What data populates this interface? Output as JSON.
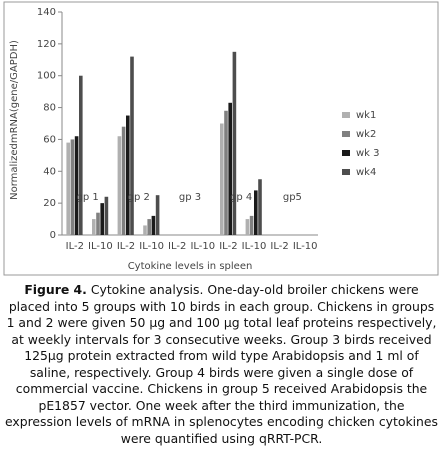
{
  "chart_data": {
    "type": "bar",
    "y_label": "NormalizedmRNA(gene/GAPDH)",
    "x_label": "Cytokine levels in spleen",
    "categories": [
      "IL-2",
      "IL-10",
      "IL-2",
      "IL-10",
      "IL-2",
      "IL-10",
      "IL-2",
      "IL-10",
      "IL-2",
      "IL-10"
    ],
    "group_labels": [
      "gp 1",
      "gp 2",
      "gp 3",
      "gp 4",
      "gp5"
    ],
    "series": [
      {
        "name": "wk1",
        "color": "#b0b0b0",
        "values": [
          58,
          10,
          62,
          6,
          0,
          0,
          70,
          10,
          0,
          0
        ]
      },
      {
        "name": "wk2",
        "color": "#808080",
        "values": [
          60,
          14,
          68,
          10,
          0,
          0,
          78,
          12,
          0,
          0
        ]
      },
      {
        "name": "wk 3",
        "color": "#1a1a1a",
        "values": [
          62,
          20,
          75,
          12,
          0,
          0,
          83,
          28,
          0,
          0
        ]
      },
      {
        "name": "wk4",
        "color": "#4d4d4d",
        "values": [
          100,
          24,
          112,
          25,
          0,
          0,
          115,
          35,
          0,
          0
        ]
      }
    ],
    "ylim": [
      0,
      140
    ],
    "yticks": [
      0,
      20,
      40,
      60,
      80,
      100,
      120,
      140
    ]
  },
  "caption": {
    "label": "Figure 4.",
    "text": "Cytokine analysis. One-day-old broiler chickens were placed into 5 groups with 10 birds in each group. Chickens in groups 1 and 2 were given 50 µg and 100 µg total leaf proteins respectively, at weekly intervals for 3 consecutive weeks. Group 3 birds received 125µg protein extracted from wild type Arabidopsis and 1 ml of saline, respectively. Group 4 birds were given a single dose of commercial vaccine. Chickens in group 5 received Arabidopsis the pE1857 vector. One week after the third immunization, the expression levels of mRNA in splenocytes encoding chicken cytokines were quantified using qRRT-PCR."
  }
}
